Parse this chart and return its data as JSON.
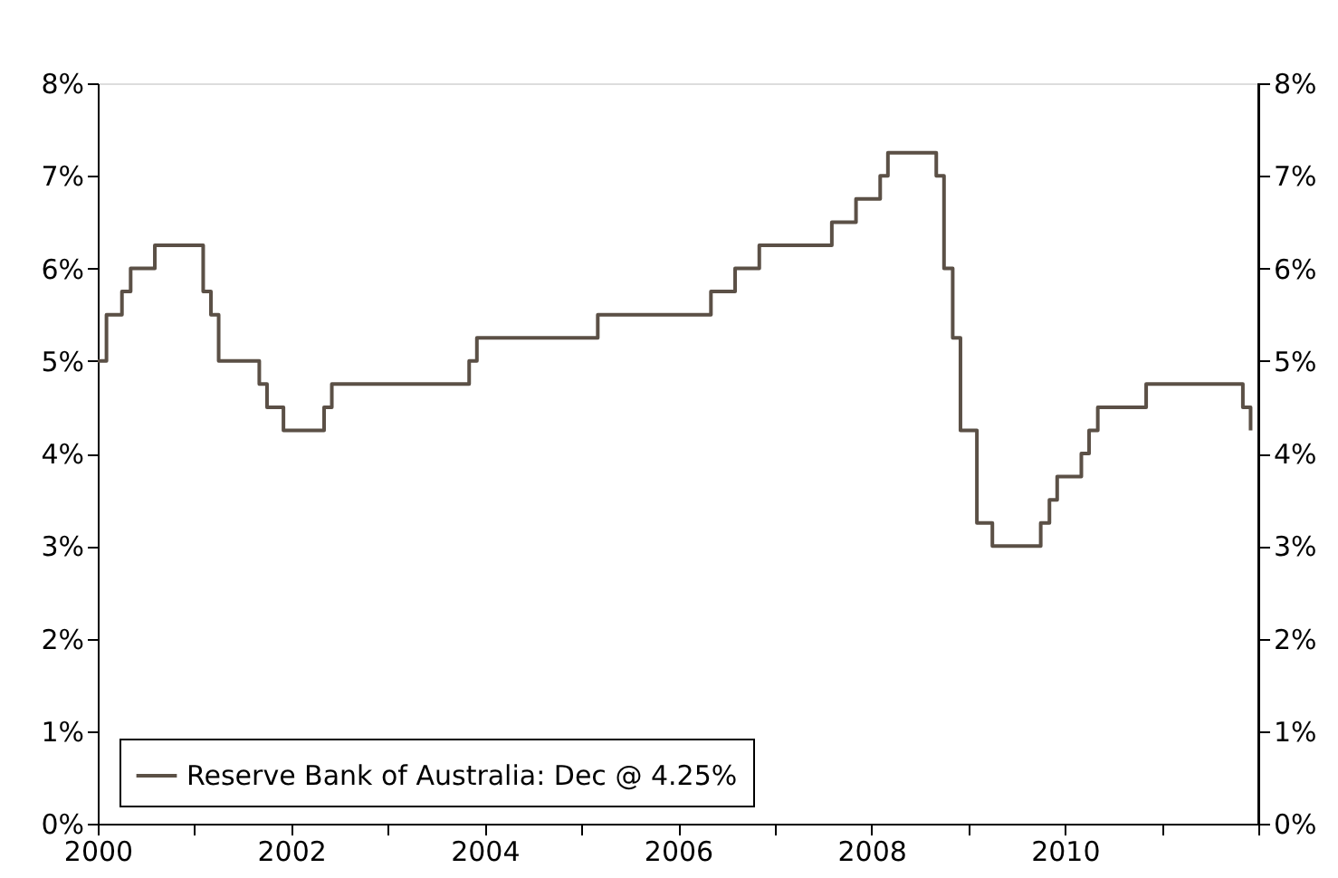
{
  "chart_data": {
    "type": "step",
    "legend": "bottom left",
    "grid": false,
    "line_style": "solid",
    "marker": "none",
    "x": [
      2000.0,
      2000.09,
      2000.25,
      2000.34,
      2000.59,
      2001.09,
      2001.17,
      2001.25,
      2001.67,
      2001.75,
      2001.92,
      2002.34,
      2002.42,
      2003.84,
      2003.92,
      2005.17,
      2006.34,
      2006.59,
      2006.84,
      2007.59,
      2007.84,
      2008.09,
      2008.17,
      2008.67,
      2008.75,
      2008.84,
      2008.92,
      2009.09,
      2009.25,
      2009.75,
      2009.84,
      2009.92,
      2010.17,
      2010.25,
      2010.34,
      2010.84,
      2011.84,
      2011.92
    ],
    "series": [
      {
        "name": "Reserve Bank of Australia: Dec @ 4.25%",
        "color": "#5b5046",
        "values": [
          5.0,
          5.5,
          5.75,
          6.0,
          6.25,
          5.75,
          5.5,
          5.0,
          4.75,
          4.5,
          4.25,
          4.5,
          4.75,
          5.0,
          5.25,
          5.5,
          5.75,
          6.0,
          6.25,
          6.5,
          6.75,
          7.0,
          7.25,
          7.0,
          6.0,
          5.25,
          4.25,
          3.25,
          3.0,
          3.25,
          3.5,
          3.75,
          4.0,
          4.25,
          4.5,
          4.75,
          4.5,
          4.25
        ]
      }
    ],
    "xlim": [
      2000,
      2012
    ],
    "xticks": [
      2000,
      {
        "value": 2001,
        "label": null
      },
      2002,
      {
        "value": 2003,
        "label": null
      },
      2004,
      {
        "value": 2005,
        "label": null
      },
      2006,
      {
        "value": 2007,
        "label": null
      },
      2008,
      {
        "value": 2009,
        "label": null
      },
      2010,
      {
        "value": 2011,
        "label": null
      },
      {
        "value": 2012,
        "label": null
      }
    ],
    "ylim": [
      0,
      8
    ],
    "yticks": [
      {
        "value": 0,
        "label": "0%"
      },
      {
        "value": 1,
        "label": "1%"
      },
      {
        "value": 2,
        "label": "2%"
      },
      {
        "value": 3,
        "label": "3%"
      },
      {
        "value": 4,
        "label": "4%"
      },
      {
        "value": 5,
        "label": "5%"
      },
      {
        "value": 6,
        "label": "6%"
      },
      {
        "value": 7,
        "label": "7%"
      },
      {
        "value": 8,
        "label": "8%"
      }
    ],
    "y2lim": [
      0,
      8
    ],
    "y2ticks": [
      {
        "value": 0,
        "label": "0%"
      },
      {
        "value": 1,
        "label": "1%"
      },
      {
        "value": 2,
        "label": "2%"
      },
      {
        "value": 3,
        "label": "3%"
      },
      {
        "value": 4,
        "label": "4%"
      },
      {
        "value": 5,
        "label": "5%"
      },
      {
        "value": 6,
        "label": "6%"
      },
      {
        "value": 7,
        "label": "7%"
      },
      {
        "value": 8,
        "label": "8%"
      }
    ]
  }
}
